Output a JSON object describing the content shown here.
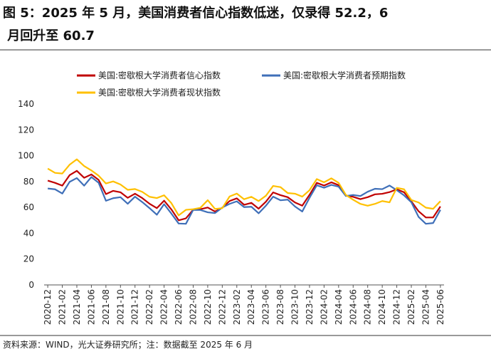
{
  "chart_data": {
    "type": "line",
    "title": "图 5：2025 年 5 月，美国消费者信心指数低迷，仅录得 52.2，6 月回升至 60.7",
    "source": "资料来源：WIND，光大证券研究所；注：数据截至 2025 年 6 月",
    "categories": [
      "2020-12",
      null,
      "2021-02",
      null,
      "2021-04",
      null,
      "2021-06",
      null,
      "2021-08",
      null,
      "2021-10",
      null,
      "2021-12",
      null,
      "2022-02",
      null,
      "2022-04",
      null,
      "2022-06",
      null,
      "2022-08",
      null,
      "2022-10",
      null,
      "2022-12",
      null,
      "2023-02",
      null,
      "2023-04",
      null,
      "2023-06",
      null,
      "2023-08",
      null,
      "2023-10",
      null,
      "2023-12",
      null,
      "2024-02",
      null,
      "2024-04",
      null,
      "2024-06",
      null,
      "2024-08",
      null,
      "2024-10",
      null,
      "2024-12",
      null,
      "2025-02",
      null,
      "2025-04",
      null,
      "2025-06"
    ],
    "series": [
      {
        "name": "美国:密歇根大学消费者信心指数",
        "color": "#c00000",
        "values": [
          80.7,
          79.0,
          76.8,
          84.9,
          88.3,
          82.9,
          85.5,
          81.2,
          70.3,
          72.8,
          71.7,
          67.4,
          70.6,
          67.2,
          62.8,
          59.4,
          65.2,
          58.4,
          50.0,
          51.5,
          58.2,
          58.6,
          59.9,
          56.8,
          59.7,
          64.9,
          67.0,
          62.0,
          63.5,
          59.0,
          64.4,
          71.6,
          69.5,
          67.9,
          63.8,
          61.3,
          69.7,
          79.0,
          76.9,
          79.4,
          77.2,
          69.1,
          68.2,
          66.4,
          67.9,
          70.1,
          70.5,
          71.8,
          74.0,
          71.7,
          64.7,
          57.0,
          52.2,
          52.2,
          60.7
        ]
      },
      {
        "name": "美国:密歇根大学消费者预期指数",
        "color": "#3f6fb8",
        "values": [
          74.6,
          74.0,
          70.7,
          79.7,
          82.7,
          76.8,
          83.5,
          79.0,
          65.1,
          67.1,
          67.9,
          62.8,
          68.3,
          64.1,
          59.4,
          54.3,
          62.5,
          55.2,
          47.5,
          47.3,
          58.0,
          58.0,
          56.2,
          55.6,
          59.9,
          62.7,
          64.7,
          60.2,
          60.5,
          55.4,
          61.3,
          68.3,
          65.5,
          66.0,
          60.7,
          56.8,
          67.4,
          77.1,
          75.2,
          77.4,
          76.0,
          68.8,
          69.6,
          68.8,
          72.1,
          74.4,
          74.1,
          76.9,
          73.3,
          69.3,
          64.0,
          52.6,
          47.3,
          47.9,
          58.1
        ]
      },
      {
        "name": "美国:密歇根大学消费者现状指数",
        "color": "#ffc000",
        "values": [
          90.0,
          86.7,
          86.2,
          93.0,
          97.2,
          92.0,
          88.6,
          84.5,
          78.5,
          80.1,
          77.7,
          73.6,
          74.2,
          72.0,
          68.2,
          67.2,
          69.4,
          63.3,
          53.8,
          58.1,
          58.6,
          59.7,
          65.6,
          58.8,
          59.4,
          68.4,
          70.7,
          66.3,
          68.2,
          64.9,
          69.0,
          76.6,
          75.7,
          71.1,
          70.6,
          68.3,
          73.3,
          81.9,
          79.4,
          82.5,
          79.0,
          69.6,
          65.9,
          62.7,
          61.3,
          62.7,
          64.9,
          63.9,
          75.1,
          74.0,
          65.7,
          63.8,
          59.8,
          58.9,
          64.8
        ]
      }
    ],
    "ylim": [
      0,
      140
    ],
    "yticks": [
      0,
      20,
      40,
      60,
      80,
      100,
      120,
      140
    ]
  }
}
